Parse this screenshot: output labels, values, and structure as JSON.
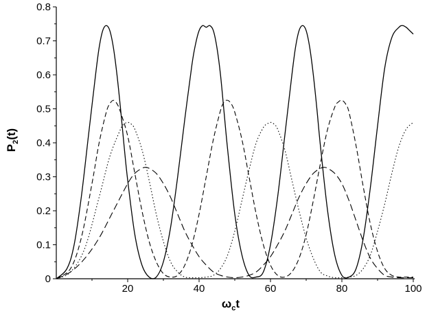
{
  "chart_data": {
    "type": "line",
    "title": "",
    "xlabel": {
      "main": "ω",
      "sub": "c",
      "tail": "t"
    },
    "ylabel": {
      "main": "P",
      "sub": "2",
      "tail": "(t)"
    },
    "xlim": [
      0,
      100
    ],
    "ylim": [
      0,
      0.8
    ],
    "grid": false,
    "legend": "none",
    "x_ticks": [
      20,
      40,
      60,
      80,
      100
    ],
    "x_tick_labels": [
      "20",
      "40",
      "60",
      "80",
      "100"
    ],
    "y_ticks": [
      0,
      0.1,
      0.2,
      0.3,
      0.4,
      0.5,
      0.6,
      0.7,
      0.8
    ],
    "y_tick_labels": [
      "0",
      "0.1",
      "0.2",
      "0.3",
      "0.4",
      "0.5",
      "0.6",
      "0.7",
      "0.8"
    ],
    "series": [
      {
        "style": "solid",
        "color": "#000000",
        "x": [
          0,
          3,
          5,
          7,
          9,
          11,
          12,
          13,
          14,
          15,
          16,
          17,
          18,
          19,
          20,
          22,
          24,
          26,
          28,
          30,
          32,
          34,
          36,
          38,
          39,
          40,
          41,
          42,
          43,
          44,
          45,
          46,
          47,
          48,
          50,
          52,
          54,
          56,
          58,
          60,
          62,
          64,
          66,
          67,
          68,
          69,
          70,
          71,
          72,
          73,
          74,
          76,
          78,
          80,
          82,
          84,
          86,
          88,
          90,
          92,
          94,
          96,
          97,
          98,
          99,
          100
        ],
        "y": [
          0,
          0.03,
          0.1,
          0.24,
          0.42,
          0.6,
          0.68,
          0.73,
          0.745,
          0.73,
          0.68,
          0.6,
          0.5,
          0.39,
          0.29,
          0.13,
          0.04,
          0.005,
          0.005,
          0.05,
          0.15,
          0.3,
          0.47,
          0.63,
          0.69,
          0.73,
          0.745,
          0.74,
          0.745,
          0.73,
          0.68,
          0.6,
          0.49,
          0.38,
          0.19,
          0.07,
          0.01,
          0.005,
          0.02,
          0.1,
          0.24,
          0.42,
          0.6,
          0.68,
          0.73,
          0.745,
          0.73,
          0.68,
          0.6,
          0.5,
          0.39,
          0.2,
          0.07,
          0.01,
          0.005,
          0.03,
          0.12,
          0.27,
          0.45,
          0.62,
          0.71,
          0.74,
          0.745,
          0.74,
          0.73,
          0.72
        ]
      },
      {
        "style": "dashed",
        "color": "#000000",
        "x": [
          0,
          4,
          7,
          10,
          12,
          14,
          15,
          16,
          17,
          18,
          20,
          22,
          24,
          26,
          28,
          30,
          32,
          34,
          36,
          38,
          40,
          42,
          44,
          46,
          47,
          48,
          49,
          50,
          52,
          54,
          56,
          58,
          60,
          62,
          64,
          66,
          68,
          70,
          72,
          74,
          76,
          78,
          79,
          80,
          81,
          82,
          84,
          86,
          88,
          90,
          92,
          94,
          96,
          98,
          100
        ],
        "y": [
          0,
          0.03,
          0.12,
          0.28,
          0.4,
          0.49,
          0.515,
          0.525,
          0.515,
          0.49,
          0.42,
          0.31,
          0.2,
          0.11,
          0.05,
          0.015,
          0.005,
          0.01,
          0.04,
          0.1,
          0.19,
          0.3,
          0.41,
          0.495,
          0.52,
          0.525,
          0.515,
          0.49,
          0.41,
          0.3,
          0.19,
          0.1,
          0.04,
          0.01,
          0.005,
          0.02,
          0.06,
          0.13,
          0.23,
          0.34,
          0.44,
          0.505,
          0.52,
          0.525,
          0.515,
          0.49,
          0.39,
          0.27,
          0.16,
          0.08,
          0.03,
          0.01,
          0.005,
          0.005,
          0.005
        ]
      },
      {
        "style": "dotted",
        "color": "#000000",
        "x": [
          0,
          4,
          8,
          12,
          15,
          18,
          19,
          20,
          21,
          22,
          24,
          26,
          28,
          30,
          32,
          34,
          36,
          38,
          40,
          42,
          44,
          46,
          48,
          50,
          52,
          54,
          56,
          58,
          59,
          60,
          61,
          62,
          64,
          66,
          68,
          70,
          72,
          74,
          76,
          78,
          80,
          82,
          84,
          86,
          88,
          90,
          92,
          94,
          96,
          98,
          100
        ],
        "y": [
          0,
          0.02,
          0.09,
          0.24,
          0.36,
          0.44,
          0.455,
          0.46,
          0.455,
          0.44,
          0.38,
          0.29,
          0.19,
          0.11,
          0.05,
          0.02,
          0.005,
          0.003,
          0.003,
          0.005,
          0.01,
          0.03,
          0.07,
          0.14,
          0.23,
          0.32,
          0.4,
          0.445,
          0.455,
          0.46,
          0.455,
          0.44,
          0.38,
          0.29,
          0.2,
          0.12,
          0.06,
          0.02,
          0.008,
          0.003,
          0.003,
          0.005,
          0.01,
          0.03,
          0.07,
          0.14,
          0.22,
          0.31,
          0.39,
          0.44,
          0.46
        ]
      },
      {
        "style": "long-dashed",
        "color": "#000000",
        "x": [
          0,
          4,
          8,
          12,
          16,
          20,
          22,
          24,
          25,
          26,
          28,
          30,
          32,
          34,
          36,
          38,
          40,
          42,
          44,
          46,
          48,
          50,
          52,
          54,
          56,
          58,
          60,
          62,
          64,
          66,
          68,
          70,
          72,
          74,
          75,
          76,
          78,
          80,
          82,
          84,
          86,
          88,
          90,
          92,
          94,
          96,
          98,
          100
        ],
        "y": [
          0,
          0.02,
          0.06,
          0.12,
          0.2,
          0.28,
          0.31,
          0.325,
          0.328,
          0.325,
          0.31,
          0.28,
          0.24,
          0.19,
          0.14,
          0.1,
          0.065,
          0.04,
          0.02,
          0.01,
          0.005,
          0.003,
          0.005,
          0.01,
          0.02,
          0.04,
          0.065,
          0.1,
          0.14,
          0.19,
          0.24,
          0.28,
          0.31,
          0.325,
          0.328,
          0.325,
          0.31,
          0.28,
          0.23,
          0.17,
          0.11,
          0.06,
          0.03,
          0.01,
          0.005,
          0.003,
          0.003,
          0.003
        ]
      }
    ]
  }
}
